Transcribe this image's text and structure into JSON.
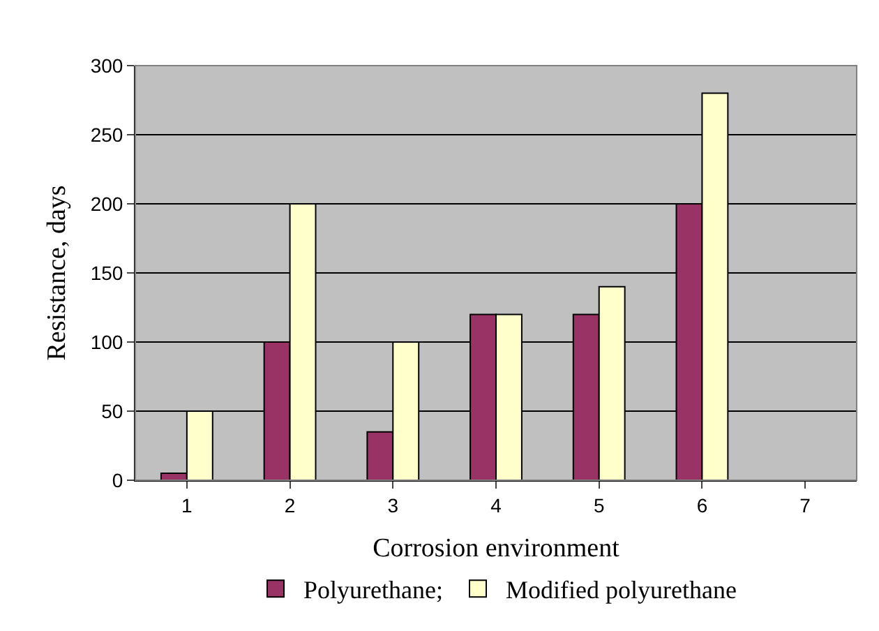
{
  "chart_data": {
    "type": "bar",
    "xlabel": "Corrosion environment",
    "ylabel": "Resistance, days",
    "categories": [
      "1",
      "2",
      "3",
      "4",
      "5",
      "6",
      "7"
    ],
    "series": [
      {
        "name": "Polyurethane;",
        "color": "#993366",
        "values": [
          5,
          100,
          35,
          120,
          120,
          200,
          null
        ]
      },
      {
        "name": "Modified polyurethane",
        "color": "#ffffcc",
        "values": [
          50,
          200,
          100,
          120,
          140,
          280,
          null
        ]
      }
    ],
    "ylim": [
      0,
      300
    ],
    "yticks": [
      0,
      50,
      100,
      150,
      200,
      250,
      300
    ],
    "grid": "y",
    "legend": "bottom"
  }
}
